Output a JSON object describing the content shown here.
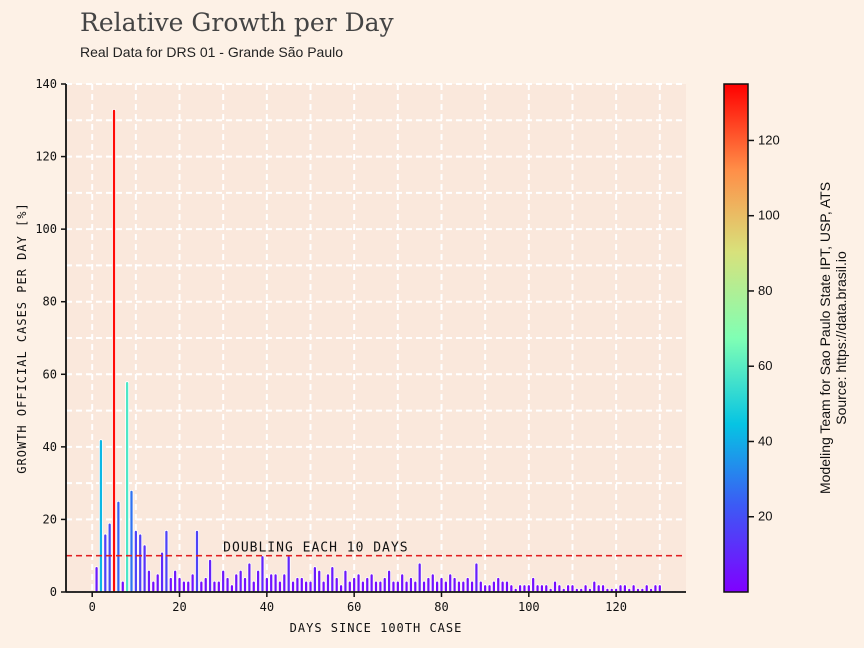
{
  "chart_data": {
    "type": "bar",
    "title": "Relative Growth per Day",
    "subtitle": "Real Data for DRS 01 - Grande São Paulo",
    "xlabel": "DAYS SINCE 100TH CASE",
    "ylabel": "GROWTH OFFICIAL CASES PER DAY [%]",
    "xlim": [
      -6,
      136
    ],
    "ylim": [
      0,
      140
    ],
    "xticks": [
      0,
      20,
      40,
      60,
      80,
      100,
      120
    ],
    "yticks": [
      0,
      20,
      40,
      60,
      80,
      100,
      120,
      140
    ],
    "grid": true,
    "x": [
      1,
      2,
      3,
      4,
      5,
      6,
      7,
      8,
      9,
      10,
      11,
      12,
      13,
      14,
      15,
      16,
      17,
      18,
      19,
      20,
      21,
      22,
      23,
      24,
      25,
      26,
      27,
      28,
      29,
      30,
      31,
      32,
      33,
      34,
      35,
      36,
      37,
      38,
      39,
      40,
      41,
      42,
      43,
      44,
      45,
      46,
      47,
      48,
      49,
      50,
      51,
      52,
      53,
      54,
      55,
      56,
      57,
      58,
      59,
      60,
      61,
      62,
      63,
      64,
      65,
      66,
      67,
      68,
      69,
      70,
      71,
      72,
      73,
      74,
      75,
      76,
      77,
      78,
      79,
      80,
      81,
      82,
      83,
      84,
      85,
      86,
      87,
      88,
      89,
      90,
      91,
      92,
      93,
      94,
      95,
      96,
      97,
      98,
      99,
      100,
      101,
      102,
      103,
      104,
      105,
      106,
      107,
      108,
      109,
      110,
      111,
      112,
      113,
      114,
      115,
      116,
      117,
      118,
      119,
      120,
      121,
      122,
      123,
      124,
      125,
      126,
      127,
      128,
      129,
      130
    ],
    "values": [
      7,
      42,
      16,
      19,
      133,
      25,
      3,
      58,
      28,
      17,
      16,
      13,
      6,
      3,
      5,
      11,
      17,
      4,
      6,
      4,
      3,
      3,
      5,
      17,
      3,
      4,
      9,
      3,
      3,
      6,
      4,
      2,
      5,
      6,
      4,
      8,
      3,
      6,
      10,
      4,
      5,
      5,
      3,
      5,
      10,
      3,
      4,
      4,
      3,
      3,
      7,
      6,
      3,
      5,
      7,
      4,
      2,
      6,
      3,
      4,
      5,
      3,
      4,
      5,
      3,
      3,
      4,
      6,
      3,
      3,
      5,
      3,
      4,
      3,
      8,
      3,
      4,
      5,
      3,
      4,
      3,
      5,
      4,
      3,
      3,
      4,
      3,
      8,
      3,
      2,
      2,
      3,
      4,
      3,
      3,
      2,
      1,
      2,
      2,
      2,
      4,
      2,
      2,
      2,
      1,
      3,
      2,
      1,
      2,
      2,
      1,
      1,
      2,
      1,
      3,
      2,
      2,
      1,
      1,
      1,
      2,
      2,
      1,
      2,
      1,
      1,
      2,
      1,
      2,
      2
    ],
    "reference_line": {
      "value": 10,
      "label": "DOUBLING EACH 10 DAYS",
      "color": "#e02020"
    },
    "colorbar": {
      "ticks": [
        20,
        40,
        60,
        80,
        100,
        120
      ],
      "range": [
        0,
        135
      ],
      "colormap": "rainbow"
    },
    "credit_lines": [
      "Modeling Team for Sao Paulo State IPT, USP, ATS",
      "Source: https://data.brasil.io"
    ],
    "colors": {
      "background": "#fdf1e6",
      "plot_background": "#fae8dc",
      "grid": "#ffffff"
    }
  }
}
